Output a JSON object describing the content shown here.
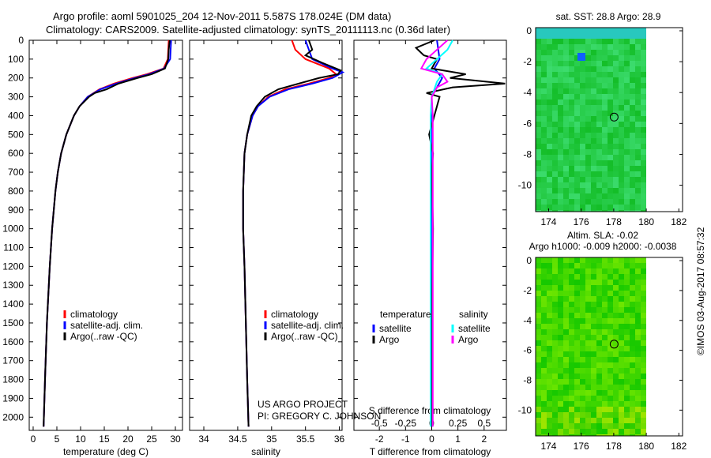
{
  "header": {
    "title1": "Argo profile: aoml 5901025_204 12-Nov-2011 5.587S 178.024E (DM data)",
    "title2": "Climatology: CARS2009. Satellite-adjusted climatology: synTS_20111113.nc (0.36d later)"
  },
  "credits": {
    "project": "US ARGO PROJECT",
    "pi": "PI: GREGORY C. JOHNSON",
    "stamp": "©IMOS 03-Aug-2017 08:57:32"
  },
  "colors": {
    "climatology": "#ff0000",
    "satellite": "#0000ff",
    "argo": "#000000",
    "sal_satellite": "#00ffff",
    "sal_argo": "#ff00ff"
  },
  "chart_data": [
    {
      "type": "line",
      "name": "temperature",
      "xlabel": "temperature (deg C)",
      "ylabel": "",
      "xlim": [
        -0.5,
        31.5
      ],
      "ylim": [
        2070,
        0
      ],
      "xticks": [
        "0",
        "5",
        "10",
        "15",
        "20",
        "25",
        "30"
      ],
      "yticks": [
        "0",
        "100",
        "200",
        "300",
        "400",
        "500",
        "600",
        "700",
        "800",
        "900",
        "1000",
        "1100",
        "1200",
        "1300",
        "1400",
        "1500",
        "1600",
        "1700",
        "1800",
        "1900",
        "2000"
      ],
      "legend": [
        "climatology",
        "satellite-adj. clim.",
        "Argo(..raw -QC)"
      ],
      "series": [
        {
          "name": "climatology",
          "depth": [
            0,
            100,
            150,
            180,
            200,
            230,
            260,
            300,
            350,
            400,
            500,
            600,
            700,
            800,
            1000,
            1200,
            1500,
            1800,
            2050
          ],
          "values": [
            28.6,
            28.4,
            27.5,
            24,
            21,
            17,
            14,
            11.5,
            9.8,
            8.6,
            7,
            5.9,
            5.2,
            4.7,
            4,
            3.5,
            2.9,
            2.5,
            2.2
          ]
        },
        {
          "name": "satellite-adj. clim.",
          "depth": [
            0,
            100,
            150,
            180,
            200,
            230,
            260,
            300,
            350,
            400,
            500,
            600,
            700,
            800,
            1000,
            1200,
            1500,
            1800,
            2050
          ],
          "values": [
            29.1,
            28.9,
            27.6,
            24.5,
            21.5,
            17.5,
            14.2,
            11.5,
            9.8,
            8.6,
            7,
            5.9,
            5.2,
            4.7,
            4,
            3.5,
            2.9,
            2.5,
            2.2
          ]
        },
        {
          "name": "Argo",
          "depth": [
            0,
            50,
            100,
            150,
            180,
            200,
            230,
            260,
            280,
            300,
            350,
            400,
            500,
            600,
            700,
            800,
            1000,
            1200,
            1500,
            1800,
            2050
          ],
          "values": [
            28.8,
            28.6,
            28.5,
            27.8,
            25,
            22,
            18,
            15.5,
            13,
            11.8,
            9.8,
            8.6,
            7,
            5.9,
            5.2,
            4.7,
            4,
            3.5,
            2.9,
            2.5,
            2.2
          ]
        }
      ]
    },
    {
      "type": "line",
      "name": "salinity",
      "xlabel": "salinity",
      "xlim": [
        33.7,
        36.07
      ],
      "ylim": [
        2070,
        0
      ],
      "xticks": [
        "34",
        "34.5",
        "35",
        "35.5",
        "36"
      ],
      "legend": [
        "climatology",
        "satellite-adj. clim.",
        "Argo(..raw -QC)"
      ],
      "series": [
        {
          "name": "climatology",
          "depth": [
            0,
            50,
            100,
            150,
            180,
            200,
            230,
            260,
            300,
            350,
            400,
            500,
            600,
            800,
            1000,
            1200,
            1500,
            1800,
            2050
          ],
          "values": [
            35.3,
            35.35,
            35.5,
            35.85,
            35.95,
            35.85,
            35.55,
            35.2,
            34.95,
            34.8,
            34.72,
            34.64,
            34.6,
            34.58,
            34.58,
            34.6,
            34.62,
            34.64,
            34.66
          ]
        },
        {
          "name": "satellite-adj. clim.",
          "depth": [
            0,
            50,
            100,
            150,
            170,
            200,
            230,
            260,
            300,
            350,
            400,
            500,
            600,
            800,
            1000,
            1200,
            1500,
            1800,
            2050
          ],
          "values": [
            35.5,
            35.55,
            35.6,
            35.9,
            36.05,
            35.9,
            35.6,
            35.25,
            34.97,
            34.8,
            34.72,
            34.64,
            34.6,
            34.58,
            34.58,
            34.6,
            34.62,
            34.64,
            34.66
          ]
        },
        {
          "name": "Argo",
          "depth": [
            0,
            50,
            80,
            120,
            160,
            180,
            200,
            230,
            260,
            300,
            350,
            400,
            500,
            600,
            800,
            1000,
            1200,
            1500,
            1800,
            2050
          ],
          "values": [
            35.55,
            35.6,
            35.5,
            35.75,
            36.02,
            35.98,
            35.7,
            35.4,
            35.1,
            34.9,
            34.78,
            34.7,
            34.64,
            34.6,
            34.58,
            34.58,
            34.6,
            34.62,
            34.64,
            34.66
          ]
        }
      ]
    },
    {
      "type": "line",
      "name": "difference",
      "xlabel": "T difference from climatology",
      "x2label": "S difference from climatology",
      "xlim": [
        -3,
        3
      ],
      "ylim": [
        2070,
        0
      ],
      "xticks": [
        "-2",
        "-1",
        "0",
        "1",
        "2"
      ],
      "x2ticks": [
        "-0.5",
        "-0.25",
        "0",
        "0.25",
        "0.5"
      ],
      "legend": {
        "temperature_head": "temperature",
        "salinity_head": "salinity",
        "t_sat": "satellite",
        "t_argo": "Argo",
        "s_sat": "satellite",
        "s_argo": "Argo"
      },
      "series": [
        {
          "name": "T satellite",
          "depth": [
            0,
            100,
            150,
            200,
            250,
            300,
            400,
            2050
          ],
          "values": [
            0.2,
            0.3,
            0.1,
            0.4,
            0.2,
            0,
            0,
            0
          ]
        },
        {
          "name": "T Argo",
          "depth": [
            0,
            40,
            80,
            100,
            150,
            180,
            200,
            230,
            250,
            280,
            300,
            400,
            500,
            600,
            700,
            1000,
            1500,
            2050
          ],
          "values": [
            0.1,
            -0.6,
            -0.3,
            0.2,
            0,
            1.3,
            0.7,
            2.8,
            0.8,
            -0.2,
            0.3,
            0.1,
            -0.1,
            0.05,
            0,
            0.05,
            0,
            0
          ]
        },
        {
          "name": "S satellite",
          "depth": [
            0,
            50,
            100,
            150,
            180,
            220,
            300,
            400,
            2050
          ],
          "values": [
            0.2,
            0.15,
            0.05,
            -0.05,
            0.1,
            0.05,
            0,
            -0.01,
            -0.01
          ]
        },
        {
          "name": "S Argo",
          "depth": [
            0,
            50,
            100,
            150,
            180,
            220,
            250,
            300,
            400,
            2050
          ],
          "values": [
            0.15,
            0.05,
            -0.05,
            -0.1,
            0.1,
            0.15,
            0.05,
            0,
            0.01,
            0.01
          ]
        }
      ]
    },
    {
      "type": "heatmap",
      "name": "sst-map",
      "title": "sat. SST: 28.8 Argo: 28.9",
      "xticks": [
        "174",
        "176",
        "178",
        "180",
        "182"
      ],
      "yticks": [
        "0",
        "-2",
        "-4",
        "-6",
        "-8",
        "-10"
      ],
      "marker": {
        "lon": 178.024,
        "lat": -5.587
      }
    },
    {
      "type": "heatmap",
      "name": "sla-map",
      "title1": "Altim. SLA: -0.02",
      "title2": "Argo h1000: -0.009 h2000: -0.0038",
      "xticks": [
        "174",
        "176",
        "178",
        "180",
        "182"
      ],
      "yticks": [
        "0",
        "-2",
        "-4",
        "-6",
        "-8",
        "-10"
      ],
      "marker": {
        "lon": 178.024,
        "lat": -5.587
      }
    }
  ]
}
